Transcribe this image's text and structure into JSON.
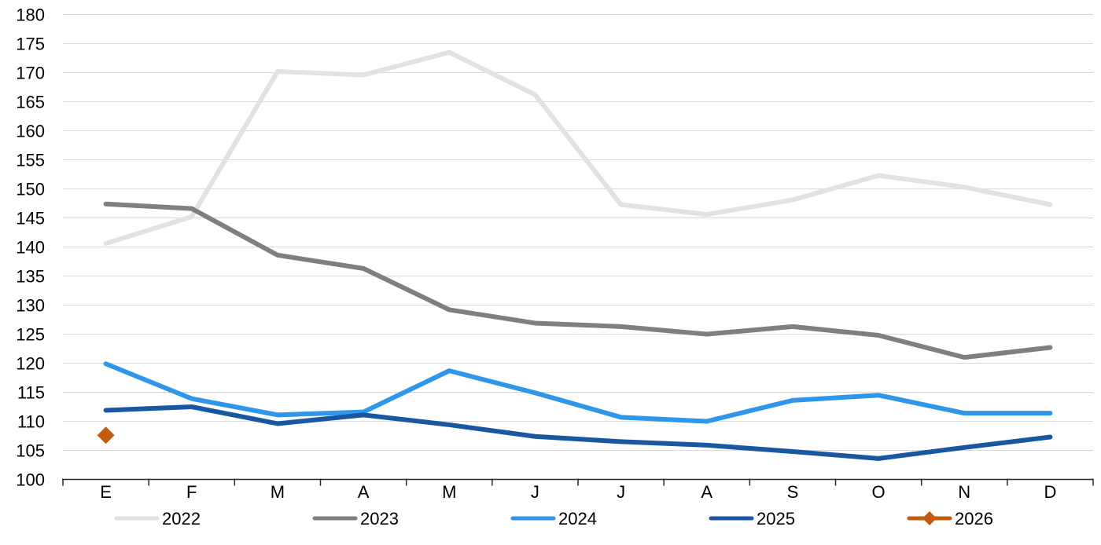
{
  "chart_data": {
    "type": "line",
    "title": "",
    "categories": [
      "E",
      "F",
      "M",
      "A",
      "M",
      "J",
      "J",
      "A",
      "S",
      "O",
      "N",
      "D"
    ],
    "y_axis": {
      "min": 100,
      "max": 180,
      "step": 5,
      "tick_labels": [
        "100",
        "105",
        "110",
        "115",
        "120",
        "125",
        "130",
        "135",
        "140",
        "145",
        "150",
        "155",
        "160",
        "165",
        "170",
        "175",
        "180"
      ]
    },
    "grid": true,
    "legend_position": "bottom",
    "series": [
      {
        "name": "2022",
        "color": "#e2e2e2",
        "marker": "none",
        "values": [
          140.6,
          145.2,
          170.2,
          169.6,
          173.5,
          166.2,
          147.3,
          145.6,
          148.1,
          152.3,
          150.3,
          147.3
        ]
      },
      {
        "name": "2023",
        "color": "#7f7f7f",
        "marker": "none",
        "values": [
          147.4,
          146.6,
          138.6,
          136.3,
          129.2,
          126.9,
          126.3,
          125.0,
          126.3,
          124.8,
          121.0,
          122.7
        ]
      },
      {
        "name": "2024",
        "color": "#2f96ea",
        "marker": "none",
        "values": [
          119.9,
          113.9,
          111.1,
          111.6,
          118.7,
          114.9,
          110.7,
          110.0,
          113.6,
          114.5,
          111.4,
          111.4
        ]
      },
      {
        "name": "2025",
        "color": "#1a57a2",
        "marker": "none",
        "values": [
          111.9,
          112.5,
          109.6,
          111.1,
          109.4,
          107.4,
          106.5,
          105.9,
          104.8,
          103.6,
          105.5,
          107.3
        ]
      },
      {
        "name": "2026",
        "color": "#c55a11",
        "marker": "diamond",
        "values": [
          107.6
        ]
      }
    ]
  },
  "colors": {
    "background": "#ffffff",
    "gridline": "#d9d9d9",
    "axis": "#262626",
    "label_text": "#000000"
  }
}
